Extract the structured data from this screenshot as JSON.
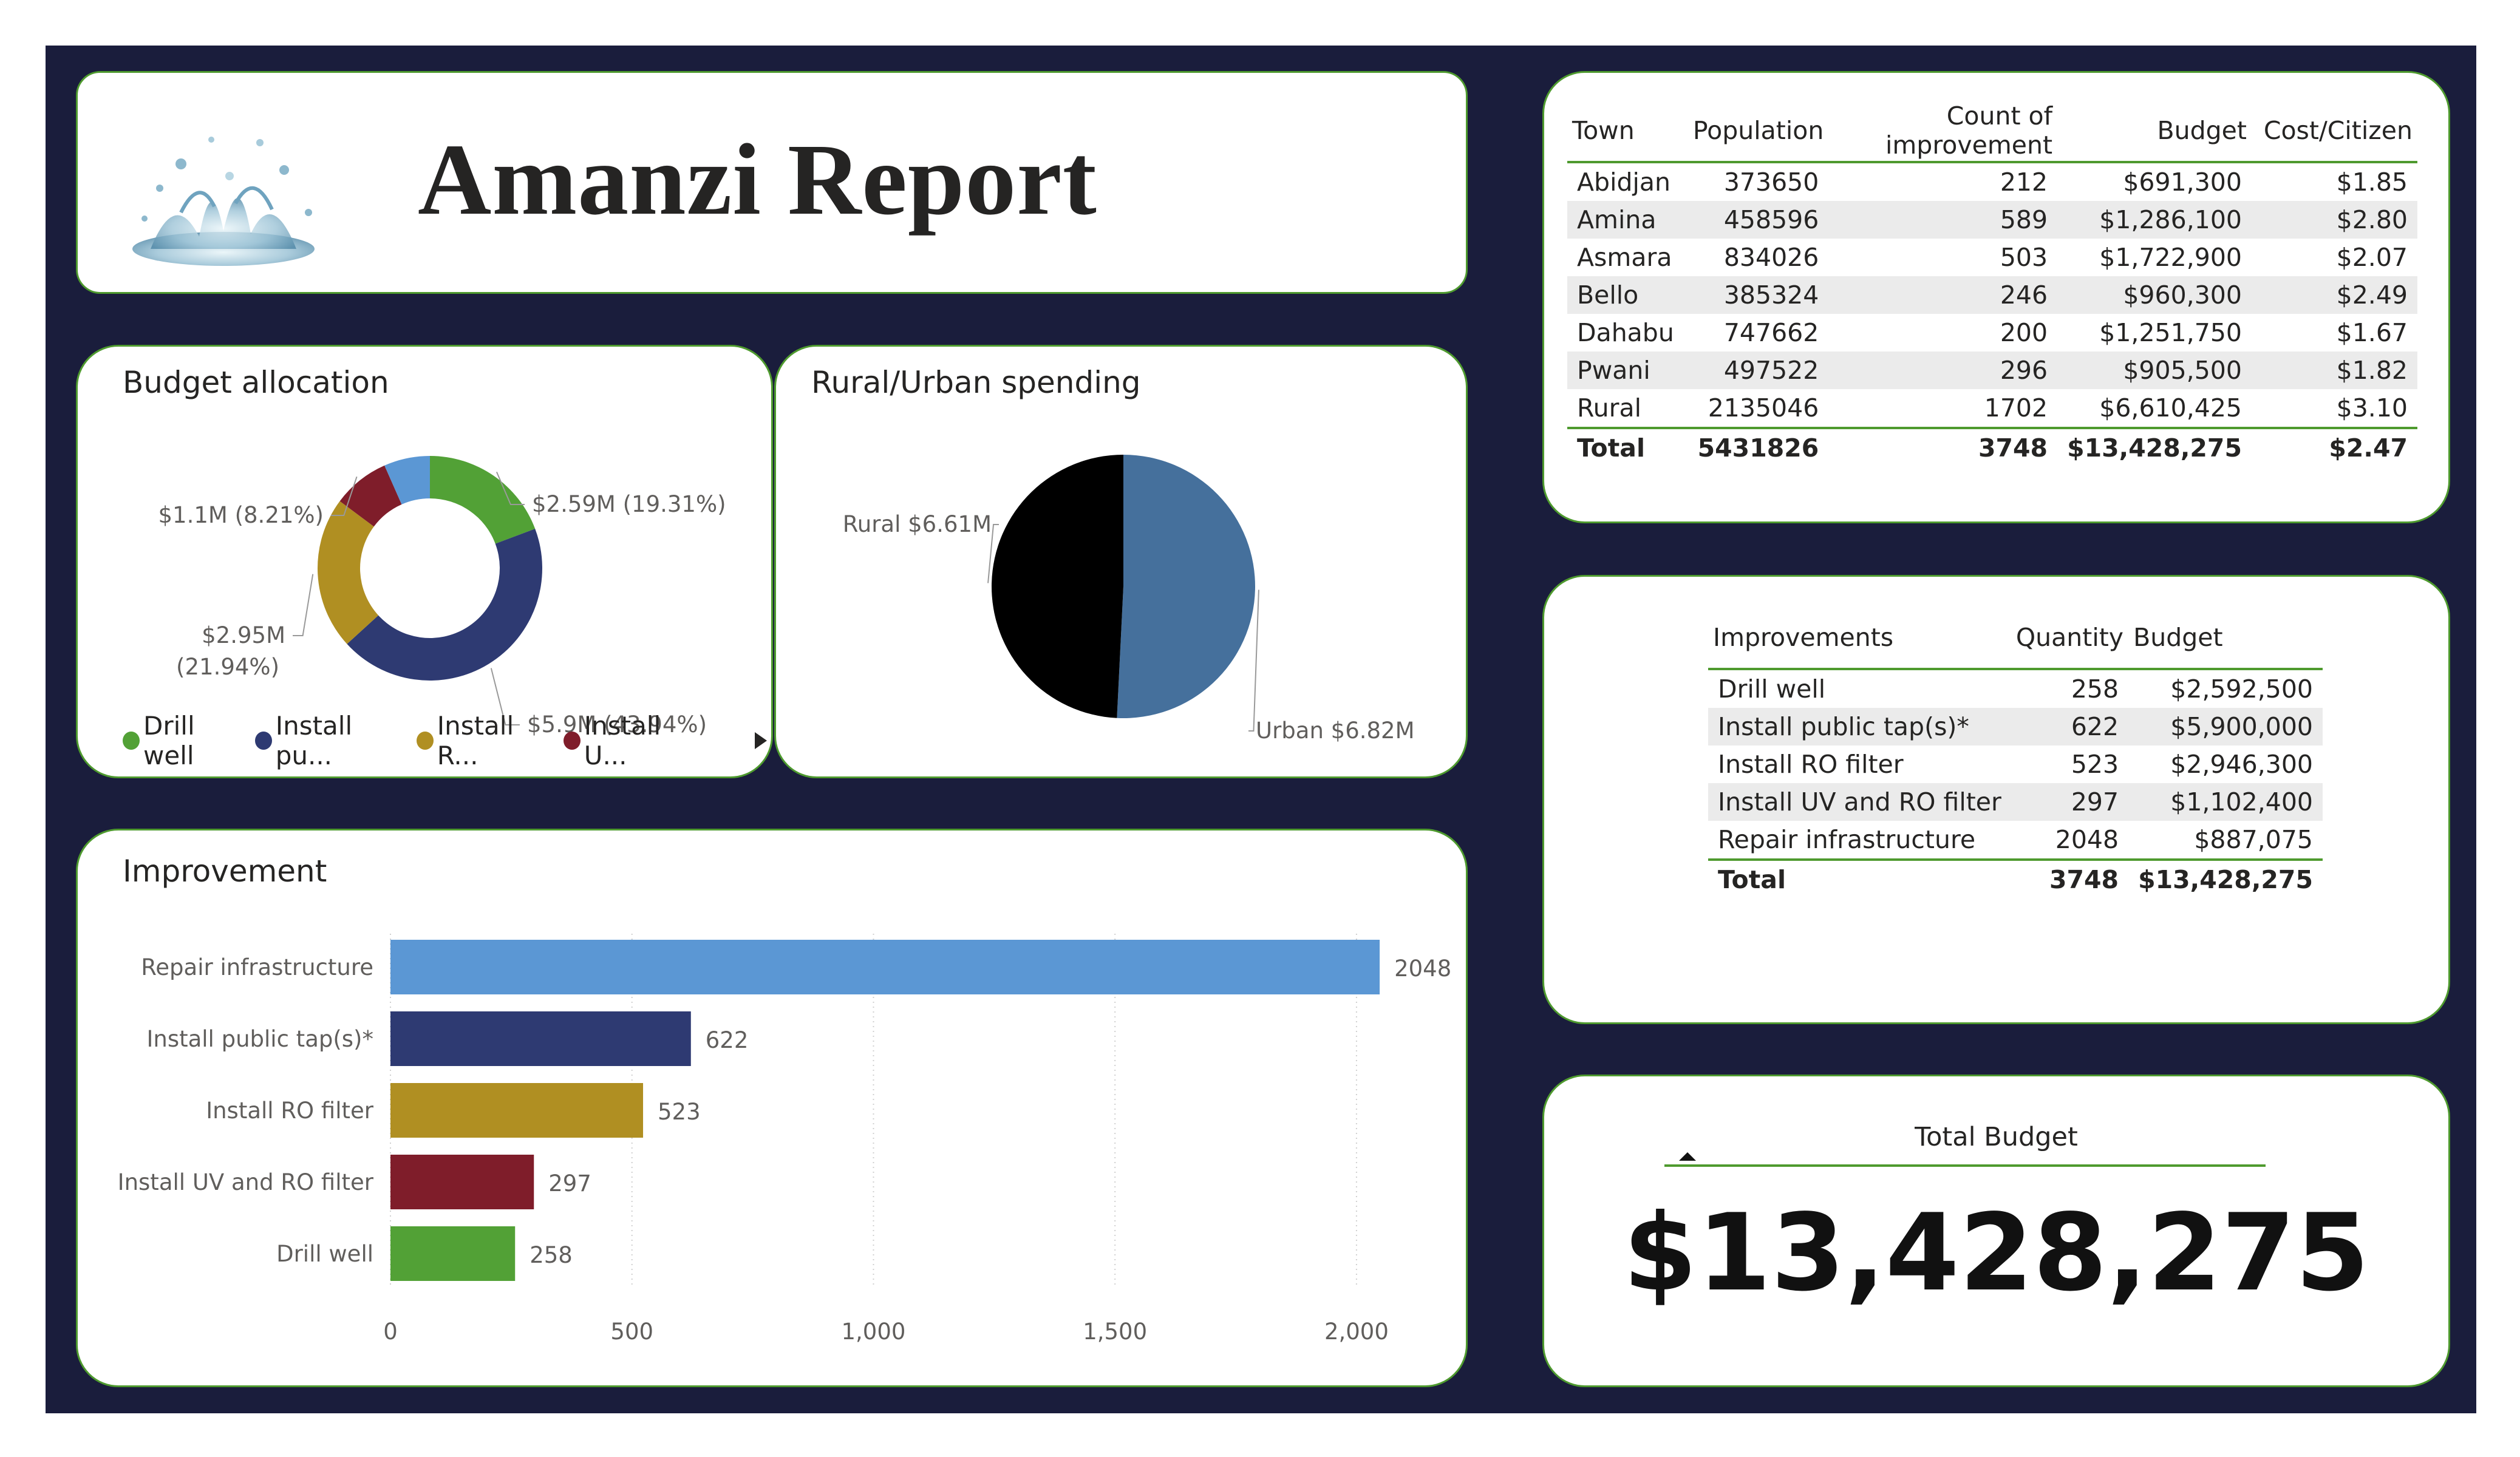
{
  "header": {
    "title": "Amanzi Report",
    "logo_icon": "water-splash-icon"
  },
  "budget_allocation": {
    "title": "Budget allocation",
    "legend": [
      {
        "label": "Drill well",
        "color": "#52a136"
      },
      {
        "label": "Install pu...",
        "color": "#2e3a72"
      },
      {
        "label": "Install R...",
        "color": "#b08f22"
      },
      {
        "label": "Install U...",
        "color": "#7f1d2a"
      }
    ],
    "legend_more_icon": "triangle-right-icon"
  },
  "rural_urban": {
    "title": "Rural/Urban spending"
  },
  "improvement_chart": {
    "title": "Improvement"
  },
  "chart_data": [
    {
      "type": "pie",
      "variant": "donut",
      "title": "Budget allocation",
      "slices": [
        {
          "name": "Drill well",
          "value": 2.59,
          "percent": 19.31,
          "label": "$2.59M (19.31%)",
          "color": "#52a136"
        },
        {
          "name": "Install public tap(s)*",
          "value": 5.9,
          "percent": 43.94,
          "label": "$5.9M (43.94%)",
          "color": "#2e3a72"
        },
        {
          "name": "Install RO filter",
          "value": 2.95,
          "percent": 21.94,
          "label": "$2.95M (21.94%)",
          "color": "#b08f22"
        },
        {
          "name": "Install UV and RO filter",
          "value": 1.1,
          "percent": 8.21,
          "label": "$1.1M (8.21%)",
          "color": "#7f1d2a"
        },
        {
          "name": "Repair infrastructure",
          "value": 0.89,
          "percent": 6.61,
          "label": "",
          "color": "#5b97d4"
        }
      ],
      "legend_position": "bottom"
    },
    {
      "type": "pie",
      "title": "Rural/Urban spending",
      "slices": [
        {
          "name": "Urban",
          "value": 6.82,
          "label": "Urban $6.82M",
          "color": "#45709c"
        },
        {
          "name": "Rural",
          "value": 6.61,
          "label": "Rural $6.61M",
          "color": "#000000"
        }
      ]
    },
    {
      "type": "bar",
      "orientation": "horizontal",
      "title": "Improvement",
      "categories": [
        "Repair infrastructure",
        "Install public tap(s)*",
        "Install RO filter",
        "Install UV and RO filter",
        "Drill well"
      ],
      "values": [
        2048,
        622,
        523,
        297,
        258
      ],
      "colors": [
        "#5b97d4",
        "#2e3a72",
        "#b08f22",
        "#7f1d2a",
        "#52a136"
      ],
      "xlim": [
        0,
        2200
      ],
      "xticks": [
        0,
        500,
        1000,
        1500,
        2000
      ],
      "xtick_labels": [
        "0",
        "500",
        "1,000",
        "1,500",
        "2,000"
      ],
      "grid": "vertical-dotted"
    }
  ],
  "town_table": {
    "columns": [
      "Town",
      "Population",
      "Count of improvement",
      "Budget",
      "Cost/Citizen"
    ],
    "rows": [
      [
        "Abidjan",
        "373650",
        "212",
        "$691,300",
        "$1.85"
      ],
      [
        "Amina",
        "458596",
        "589",
        "$1,286,100",
        "$2.80"
      ],
      [
        "Asmara",
        "834026",
        "503",
        "$1,722,900",
        "$2.07"
      ],
      [
        "Bello",
        "385324",
        "246",
        "$960,300",
        "$2.49"
      ],
      [
        "Dahabu",
        "747662",
        "200",
        "$1,251,750",
        "$1.67"
      ],
      [
        "Pwani",
        "497522",
        "296",
        "$905,500",
        "$1.82"
      ],
      [
        "Rural",
        "2135046",
        "1702",
        "$6,610,425",
        "$3.10"
      ]
    ],
    "total": [
      "Total",
      "5431826",
      "3748",
      "$13,428,275",
      "$2.47"
    ]
  },
  "improvements_table": {
    "columns": [
      "Improvements",
      "Quantity",
      "Budget"
    ],
    "rows": [
      [
        "Drill well",
        "258",
        "$2,592,500"
      ],
      [
        "Install public tap(s)*",
        "622",
        "$5,900,000"
      ],
      [
        "Install RO filter",
        "523",
        "$2,946,300"
      ],
      [
        "Install UV and RO filter",
        "297",
        "$1,102,400"
      ],
      [
        "Repair infrastructure",
        "2048",
        "$887,075"
      ]
    ],
    "total": [
      "Total",
      "3748",
      "$13,428,275"
    ]
  },
  "total_budget": {
    "label": "Total Budget",
    "value": "$13,428,275",
    "sort_icon": "triangle-up-icon"
  }
}
